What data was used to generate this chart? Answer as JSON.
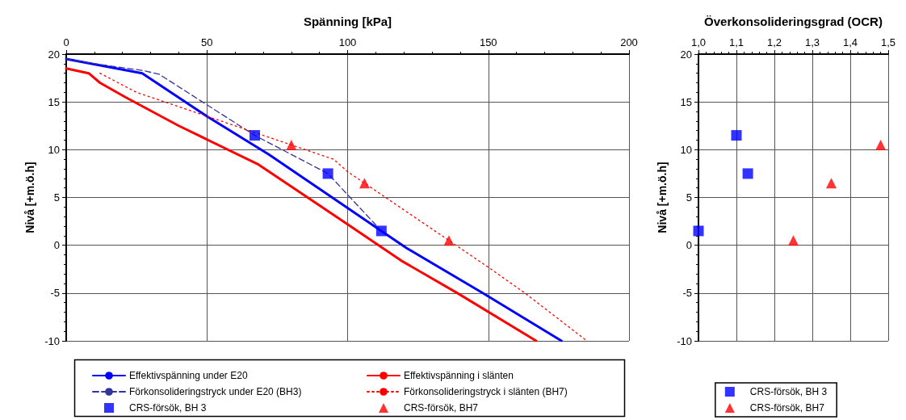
{
  "chart_data": [
    {
      "type": "line",
      "xlabel": "Spänning [kPa]",
      "ylabel": "Nivå [+m.ö.h]",
      "xlim": [
        0,
        200
      ],
      "xticks": [
        0,
        50,
        100,
        150,
        200
      ],
      "ylim": [
        -10,
        20
      ],
      "yticks": [
        -10,
        -5,
        0,
        5,
        10,
        15,
        20
      ],
      "grid": true,
      "legend": "bottom",
      "series": [
        {
          "name": "Effektivspänning under E20",
          "color": "#0000ff",
          "line_style": "solid",
          "marker": "none",
          "x": [
            0,
            27,
            50,
            72,
            112,
            121,
            148,
            176
          ],
          "values": [
            19.5,
            18,
            13.5,
            9.5,
            1.5,
            -0.3,
            -5,
            -10
          ]
        },
        {
          "name": "Effektivspänning i slänten",
          "color": "#ff0000",
          "line_style": "solid",
          "marker": "none",
          "x": [
            0,
            8,
            12,
            21,
            40,
            68,
            100,
            119,
            139,
            167
          ],
          "values": [
            18.5,
            18,
            17,
            15.5,
            12.5,
            8.5,
            2.2,
            -1.6,
            -5,
            -10
          ]
        },
        {
          "name": "Förkonsolideringstryck under E20 (BH3)",
          "color": "#333399",
          "line_style": "dashed",
          "marker": "none",
          "x": [
            0,
            10,
            27,
            33,
            50,
            67,
            93,
            112
          ],
          "values": [
            19.5,
            19,
            18.3,
            17.9,
            14.7,
            11.5,
            7.5,
            1.5
          ]
        },
        {
          "name": "Förkonsolideringstryck i slänten (BH7)",
          "color": "#ff0000",
          "line_style": "dotted",
          "marker": "none",
          "x": [
            12,
            25,
            38,
            50,
            67,
            80,
            95,
            100,
            106,
            136,
            150,
            163,
            185
          ],
          "values": [
            18,
            16,
            14.7,
            13.5,
            11.8,
            10.5,
            9,
            7.7,
            6.5,
            0.5,
            -2.3,
            -5,
            -10
          ]
        },
        {
          "name": "CRS-försök, BH 3",
          "type": "scatter",
          "color": "#0000ff",
          "marker": "square",
          "x": [
            67,
            93,
            112
          ],
          "values": [
            11.5,
            7.5,
            1.5
          ]
        },
        {
          "name": "CRS-försök, BH7",
          "type": "scatter",
          "color": "#ff0000",
          "marker": "triangle",
          "x": [
            80,
            106,
            136
          ],
          "values": [
            10.5,
            6.5,
            0.5
          ]
        }
      ]
    },
    {
      "type": "scatter",
      "xlabel": "Överkonsolideringsgrad (OCR)",
      "ylabel": "Nivå [+m.ö.h]",
      "xlim": [
        1.0,
        1.5
      ],
      "xticks": [
        {
          "value": 1.0,
          "label": "1,0"
        },
        {
          "value": 1.1,
          "label": "1,1"
        },
        {
          "value": 1.2,
          "label": "1,2"
        },
        {
          "value": 1.3,
          "label": "1,3"
        },
        {
          "value": 1.4,
          "label": "1,4"
        },
        {
          "value": 1.5,
          "label": "1,5"
        }
      ],
      "ylim": [
        -10,
        20
      ],
      "yticks": [
        -10,
        -5,
        0,
        5,
        10,
        15,
        20
      ],
      "grid": true,
      "legend": "bottom",
      "series": [
        {
          "name": "CRS-försök, BH 3",
          "color": "#0000ff",
          "marker": "square",
          "x": [
            1.1,
            1.13,
            1.0
          ],
          "values": [
            11.5,
            7.5,
            1.5
          ]
        },
        {
          "name": "CRS-försök, BH7",
          "color": "#ff0000",
          "marker": "triangle",
          "x": [
            1.48,
            1.35,
            1.25
          ],
          "values": [
            10.5,
            6.5,
            0.5
          ]
        }
      ]
    }
  ]
}
